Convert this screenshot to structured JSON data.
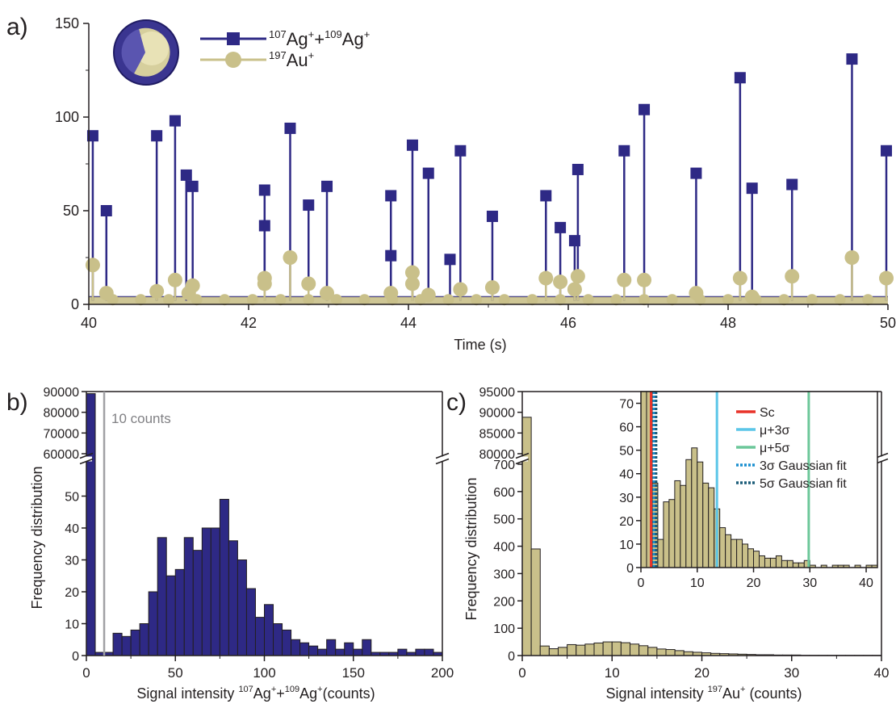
{
  "colors": {
    "ag": "#2e2985",
    "au": "#c9c08a",
    "au_edge": "#b3a86a",
    "axis": "#231f20",
    "threshold": "#a0a0a4",
    "sc": "#e8332a",
    "mu3": "#5bc6e8",
    "mu5": "#6cc79a",
    "g3": "#1b8fd0",
    "g5": "#1a5c78"
  },
  "chart_data": [
    {
      "panel": "a)",
      "type": "line",
      "xlabel": "Time (s)",
      "ylabel": "",
      "xlim": [
        40,
        50
      ],
      "ylim": [
        0,
        150
      ],
      "xticks": [
        40,
        42,
        44,
        46,
        48,
        50
      ],
      "yticks": [
        0,
        50,
        100,
        150
      ],
      "legend_position": "top-left",
      "series": [
        {
          "name_sup1": "107",
          "name_a": "Ag",
          "name_sup2": "+",
          "name_b": "+",
          "name_sup3": "109",
          "name_c": "Ag",
          "name_sup4": "+",
          "color": "#2e2985",
          "marker": "square",
          "x": [
            40.05,
            40.22,
            40.85,
            41.08,
            41.22,
            41.3,
            42.2,
            42.2,
            42.52,
            42.75,
            42.98,
            43.78,
            43.78,
            44.05,
            44.25,
            44.52,
            44.65,
            45.05,
            45.72,
            45.9,
            46.08,
            46.12,
            46.7,
            46.95,
            47.6,
            48.15,
            48.3,
            48.8,
            49.55,
            49.98
          ],
          "y": [
            90,
            50,
            90,
            98,
            69,
            63,
            42,
            61,
            94,
            53,
            63,
            26,
            58,
            85,
            70,
            24,
            82,
            47,
            58,
            41,
            34,
            72,
            82,
            104,
            70,
            121,
            62,
            64,
            131,
            82
          ]
        },
        {
          "name_sup1": "197",
          "name_a": "Au",
          "name_sup2": "+",
          "color": "#c9c08a",
          "marker": "circle",
          "x": [
            40.05,
            40.22,
            40.85,
            41.08,
            41.25,
            41.3,
            42.2,
            42.2,
            42.52,
            42.75,
            42.98,
            43.78,
            44.05,
            44.05,
            44.25,
            44.65,
            45.05,
            45.72,
            45.9,
            46.08,
            46.12,
            46.7,
            46.95,
            47.6,
            48.15,
            48.3,
            48.8,
            49.55,
            49.98
          ],
          "y": [
            21,
            6,
            7,
            13,
            6,
            10,
            14,
            11,
            25,
            11,
            6,
            6,
            17,
            11,
            5,
            8,
            9,
            14,
            12,
            8,
            15,
            13,
            13,
            6,
            14,
            4,
            15,
            25,
            14
          ]
        }
      ]
    },
    {
      "panel": "b)",
      "type": "bar",
      "xlabel_a": "Signal intensity ",
      "xlabel_sup1": "107",
      "xlabel_b": "Ag",
      "xlabel_sup2": "+",
      "xlabel_c": "+",
      "xlabel_sup3": "109",
      "xlabel_d": "Ag",
      "xlabel_sup4": "+",
      "xlabel_e": "(counts)",
      "ylabel": "Frequency distribution",
      "xlim": [
        0,
        200
      ],
      "bin_width": 5,
      "xticks": [
        0,
        50,
        100,
        150,
        200
      ],
      "ylim_lower": [
        0,
        60
      ],
      "ylim_upper": [
        60000,
        90000
      ],
      "yticks_lower": [
        0,
        10,
        20,
        30,
        40,
        50
      ],
      "yticks_upper": [
        60000,
        70000,
        80000,
        90000
      ],
      "broken_axis": true,
      "threshold": {
        "x": 10,
        "label": "10 counts"
      },
      "first_bin_value": 89000,
      "values": [
        89000,
        1,
        1,
        7,
        6,
        8,
        10,
        20,
        37,
        25,
        27,
        37,
        33,
        40,
        40,
        49,
        36,
        30,
        21,
        12,
        16,
        10,
        8,
        5,
        4,
        3,
        2,
        5,
        2,
        4,
        2,
        5,
        1,
        1,
        1,
        2,
        1,
        2,
        2,
        1
      ]
    },
    {
      "panel": "c)",
      "type": "bar",
      "xlabel_a": "Signal intensity ",
      "xlabel_sup1": "197",
      "xlabel_b": "Au",
      "xlabel_sup2": "+",
      "xlabel_c": " (counts)",
      "ylabel": "Frequency distribution",
      "xlim": [
        0,
        40
      ],
      "bin_width": 1,
      "xticks": [
        0,
        10,
        20,
        30,
        40
      ],
      "ylim_lower": [
        0,
        700
      ],
      "ylim_upper": [
        80000,
        95000
      ],
      "yticks_lower": [
        0,
        100,
        200,
        300,
        400,
        500,
        600,
        700
      ],
      "yticks_upper": [
        80000,
        85000,
        90000,
        95000
      ],
      "broken_axis": true,
      "first_bin_value": 88800,
      "values": [
        88800,
        390,
        35,
        25,
        30,
        40,
        38,
        42,
        46,
        50,
        50,
        47,
        42,
        36,
        30,
        24,
        22,
        18,
        14,
        12,
        10,
        8,
        7,
        6,
        5,
        4,
        3,
        3,
        2,
        2,
        2,
        1,
        1,
        1,
        1,
        1,
        1,
        1,
        1,
        1
      ],
      "inset": {
        "xlim": [
          0,
          42
        ],
        "ylim": [
          0,
          75
        ],
        "bin_width": 1,
        "xticks": [
          0,
          10,
          20,
          30,
          40
        ],
        "yticks": [
          0,
          10,
          20,
          30,
          40,
          50,
          60,
          70
        ],
        "values": [
          75,
          75,
          36,
          12,
          28,
          29,
          37,
          35,
          46,
          51,
          45,
          36,
          34,
          25,
          17,
          14,
          12,
          12,
          10,
          8,
          7,
          5,
          4,
          4,
          5,
          3,
          3,
          2,
          2,
          3,
          1,
          0,
          1,
          0,
          1,
          1,
          1,
          0,
          1,
          0,
          1,
          1
        ],
        "lines": [
          {
            "label": "Sc",
            "x": 1.8,
            "color": "#e8332a",
            "style": "solid"
          },
          {
            "label": "μ+3σ",
            "x": 13.5,
            "color": "#5bc6e8",
            "style": "solid"
          },
          {
            "label": "μ+5σ",
            "x": 29.8,
            "color": "#6cc79a",
            "style": "solid"
          },
          {
            "label": "3σ Gaussian fit",
            "x": 2.3,
            "color": "#1b8fd0",
            "style": "dotted"
          },
          {
            "label": "5σ Gaussian fit",
            "x": 2.7,
            "color": "#1a5c78",
            "style": "dotted"
          }
        ],
        "legend_position": "top-right"
      }
    }
  ]
}
